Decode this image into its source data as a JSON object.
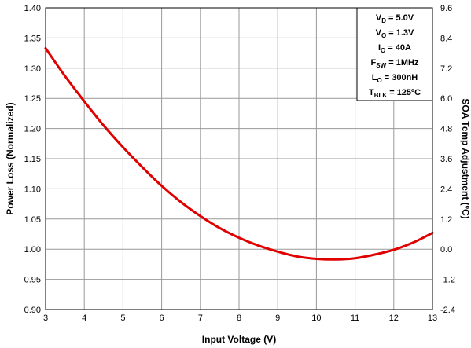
{
  "chart_data": {
    "type": "line",
    "xlabel": "Input Voltage (V)",
    "ylabel": "Power Loss (Normalized)",
    "y2label": "SOA Temp Adjustment (ºC)",
    "xlim": [
      3,
      13
    ],
    "ylim": [
      0.9,
      1.4
    ],
    "y2lim": [
      -2.4,
      9.6
    ],
    "x_ticks": [
      "3",
      "4",
      "5",
      "6",
      "7",
      "8",
      "9",
      "10",
      "11",
      "12",
      "13"
    ],
    "y_ticks": [
      "0.90",
      "0.95",
      "1.00",
      "1.05",
      "1.10",
      "1.15",
      "1.20",
      "1.25",
      "1.30",
      "1.35",
      "1.40"
    ],
    "y2_ticks": [
      "-2.4",
      "-1.2",
      "0.0",
      "1.2",
      "2.4",
      "3.6",
      "4.8",
      "6.0",
      "7.2",
      "8.4",
      "9.6"
    ],
    "grid": true,
    "series": [
      {
        "color": "#e00000",
        "x": [
          3,
          3.5,
          4,
          4.5,
          5,
          5.5,
          6,
          6.5,
          7,
          7.5,
          8,
          8.5,
          9,
          9.5,
          10,
          10.5,
          11,
          11.5,
          12,
          12.5,
          13
        ],
        "y": [
          1.333,
          1.287,
          1.245,
          1.205,
          1.169,
          1.136,
          1.105,
          1.078,
          1.055,
          1.035,
          1.019,
          1.006,
          0.996,
          0.988,
          0.984,
          0.983,
          0.985,
          0.991,
          0.999,
          1.011,
          1.027
        ]
      }
    ],
    "annotations": [
      {
        "main": "V",
        "sub": "D",
        "rest": " = 5.0V"
      },
      {
        "main": "V",
        "sub": "O",
        "rest": " = 1.3V"
      },
      {
        "main": "I",
        "sub": "O",
        "rest": " = 40A"
      },
      {
        "main": "F",
        "sub": "SW",
        "rest": " = 1MHz"
      },
      {
        "main": "L",
        "sub": "O",
        "rest": " = 300nH"
      },
      {
        "main": "T",
        "sub": "BLK",
        "rest": " = 125ºC"
      }
    ]
  }
}
